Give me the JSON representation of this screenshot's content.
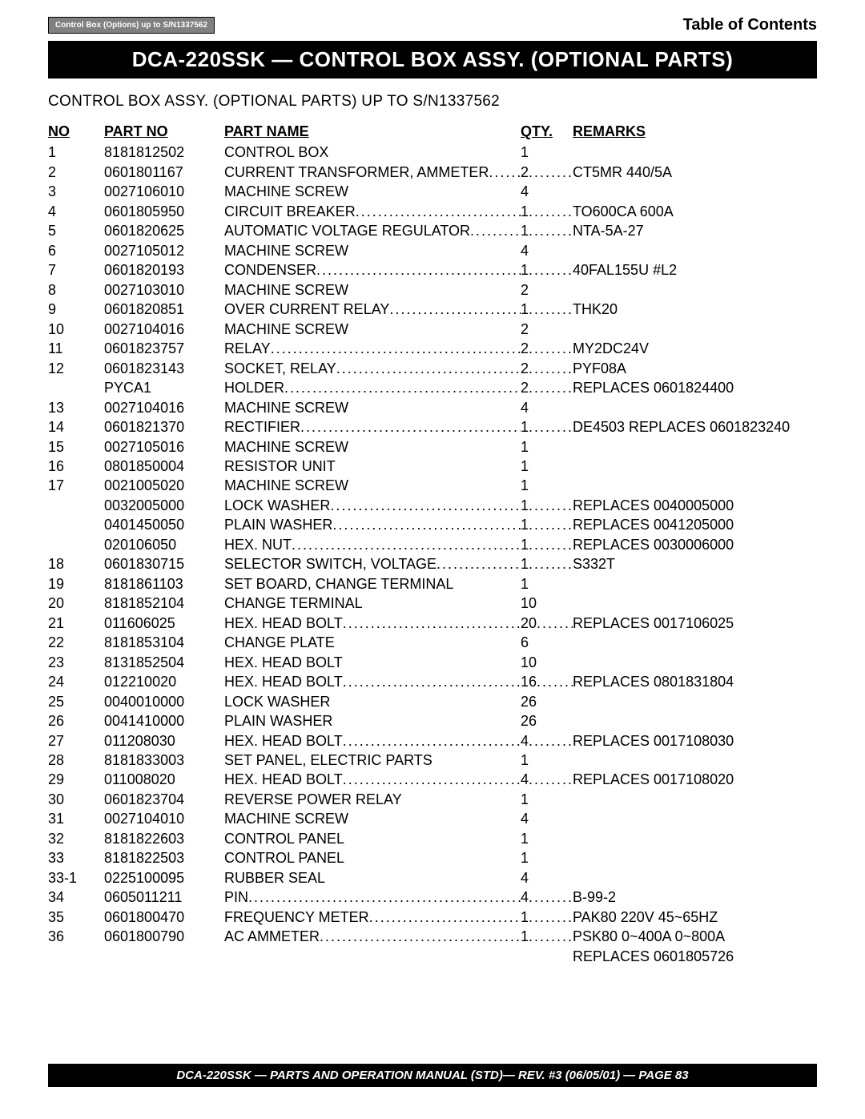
{
  "header": {
    "tag": "Control Box (Options) up to S/N1337562",
    "toc": "Table of Contents",
    "title": "DCA-220SSK — CONTROL BOX ASSY. (OPTIONAL PARTS)",
    "subtitle": "CONTROL BOX ASSY. (OPTIONAL PARTS) UP TO S/N1337562"
  },
  "columns": {
    "no": "NO",
    "partno": "PART NO",
    "partname": "PART NAME",
    "qty": "QTY.",
    "remarks": "REMARKS"
  },
  "rows": [
    {
      "no": "1",
      "pn": "8181812502",
      "name": "CONTROL BOX",
      "qty": "1",
      "rem": "",
      "dots": false
    },
    {
      "no": "2",
      "pn": "0601801167",
      "name": "CURRENT TRANSFORMER, AMMETER",
      "qty": "2",
      "rem": "CT5MR 440/5A",
      "dots": true
    },
    {
      "no": "3",
      "pn": "0027106010",
      "name": "MACHINE SCREW",
      "qty": "4",
      "rem": "",
      "dots": false
    },
    {
      "no": "4",
      "pn": "0601805950",
      "name": "CIRCUIT BREAKER",
      "qty": "1",
      "rem": "TO600CA 600A",
      "dots": true
    },
    {
      "no": "5",
      "pn": "0601820625",
      "name": "AUTOMATIC VOLTAGE REGULATOR",
      "qty": "1",
      "rem": "NTA-5A-27",
      "dots": true
    },
    {
      "no": "6",
      "pn": "0027105012",
      "name": "MACHINE SCREW",
      "qty": "4",
      "rem": "",
      "dots": false
    },
    {
      "no": "7",
      "pn": "0601820193",
      "name": "CONDENSER",
      "qty": "1",
      "rem": "40FAL155U #L2",
      "dots": true
    },
    {
      "no": "8",
      "pn": "0027103010",
      "name": "MACHINE SCREW",
      "qty": "2",
      "rem": "",
      "dots": false
    },
    {
      "no": "9",
      "pn": "0601820851",
      "name": "OVER CURRENT RELAY",
      "qty": "1",
      "rem": "THK20",
      "dots": true
    },
    {
      "no": "10",
      "pn": "0027104016",
      "name": "MACHINE SCREW",
      "qty": "2",
      "rem": "",
      "dots": false
    },
    {
      "no": "11",
      "pn": "0601823757",
      "name": "RELAY",
      "qty": "2",
      "rem": "MY2DC24V",
      "dots": true
    },
    {
      "no": "12",
      "pn": "0601823143",
      "name": "SOCKET, RELAY",
      "qty": "2",
      "rem": "PYF08A",
      "dots": true
    },
    {
      "no": "",
      "pn": "PYCA1",
      "name": "HOLDER",
      "qty": "2",
      "rem": "REPLACES 0601824400",
      "dots": true
    },
    {
      "no": "13",
      "pn": "0027104016",
      "name": "MACHINE SCREW",
      "qty": "4",
      "rem": "",
      "dots": false
    },
    {
      "no": "14",
      "pn": "0601821370",
      "name": "RECTIFIER",
      "qty": "1",
      "rem": "DE4503 REPLACES 0601823240",
      "dots": true
    },
    {
      "no": "15",
      "pn": "0027105016",
      "name": "MACHINE SCREW",
      "qty": "1",
      "rem": "",
      "dots": false
    },
    {
      "no": "16",
      "pn": "0801850004",
      "name": "RESISTOR UNIT",
      "qty": "1",
      "rem": "",
      "dots": false
    },
    {
      "no": "17",
      "pn": "0021005020",
      "name": "MACHINE SCREW",
      "qty": "1",
      "rem": "",
      "dots": false
    },
    {
      "no": "",
      "pn": "0032005000",
      "name": "LOCK WASHER",
      "qty": "1",
      "rem": "REPLACES 0040005000",
      "dots": true
    },
    {
      "no": "",
      "pn": "0401450050",
      "name": "PLAIN WASHER",
      "qty": "1",
      "rem": "REPLACES 0041205000",
      "dots": true
    },
    {
      "no": "",
      "pn": "020106050",
      "name": "HEX. NUT",
      "qty": "1",
      "rem": "REPLACES 0030006000",
      "dots": true
    },
    {
      "no": "18",
      "pn": "0601830715",
      "name": "SELECTOR SWITCH, VOLTAGE",
      "qty": "1",
      "rem": "S332T",
      "dots": true
    },
    {
      "no": "19",
      "pn": "8181861103",
      "name": "SET BOARD, CHANGE TERMINAL",
      "qty": "1",
      "rem": "",
      "dots": false
    },
    {
      "no": "20",
      "pn": "8181852104",
      "name": "CHANGE TERMINAL",
      "qty": "10",
      "rem": "",
      "dots": false
    },
    {
      "no": "21",
      "pn": "011606025",
      "name": "HEX. HEAD BOLT",
      "qty": "20",
      "rem": "REPLACES 0017106025",
      "dots": true
    },
    {
      "no": "22",
      "pn": "8181853104",
      "name": "CHANGE PLATE",
      "qty": "6",
      "rem": "",
      "dots": false
    },
    {
      "no": "23",
      "pn": "8131852504",
      "name": "HEX. HEAD BOLT",
      "qty": "10",
      "rem": "",
      "dots": false
    },
    {
      "no": "24",
      "pn": "012210020",
      "name": "HEX. HEAD BOLT",
      "qty": "16",
      "rem": "REPLACES 0801831804",
      "dots": true
    },
    {
      "no": "25",
      "pn": "0040010000",
      "name": "LOCK WASHER",
      "qty": "26",
      "rem": "",
      "dots": false
    },
    {
      "no": "26",
      "pn": "0041410000",
      "name": "PLAIN WASHER",
      "qty": "26",
      "rem": "",
      "dots": false
    },
    {
      "no": "27",
      "pn": "011208030",
      "name": "HEX. HEAD BOLT",
      "qty": "4",
      "rem": "REPLACES 0017108030",
      "dots": true
    },
    {
      "no": "28",
      "pn": "8181833003",
      "name": "SET PANEL, ELECTRIC PARTS",
      "qty": "1",
      "rem": "",
      "dots": false
    },
    {
      "no": "29",
      "pn": "011008020",
      "name": "HEX. HEAD BOLT",
      "qty": "4",
      "rem": "REPLACES 0017108020",
      "dots": true
    },
    {
      "no": "30",
      "pn": "0601823704",
      "name": "REVERSE POWER RELAY",
      "qty": "1",
      "rem": "",
      "dots": false
    },
    {
      "no": "31",
      "pn": "0027104010",
      "name": "MACHINE SCREW",
      "qty": "4",
      "rem": "",
      "dots": false
    },
    {
      "no": "32",
      "pn": "8181822603",
      "name": "CONTROL PANEL",
      "qty": "1",
      "rem": "",
      "dots": false
    },
    {
      "no": "33",
      "pn": "8181822503",
      "name": "CONTROL PANEL",
      "qty": "1",
      "rem": "",
      "dots": false
    },
    {
      "no": "33-1",
      "pn": "0225100095",
      "name": "RUBBER SEAL",
      "qty": "4",
      "rem": "",
      "dots": false
    },
    {
      "no": "34",
      "pn": "0605011211",
      "name": "PIN",
      "qty": "4",
      "rem": "B-99-2",
      "dots": true
    },
    {
      "no": "35",
      "pn": "0601800470",
      "name": "FREQUENCY METER",
      "qty": "1",
      "rem": "PAK80 220V 45~65HZ",
      "dots": true
    },
    {
      "no": "36",
      "pn": "0601800790",
      "name": "AC AMMETER",
      "qty": "1",
      "rem": "PSK80 0~400A 0~800A",
      "dots": true
    },
    {
      "no": "",
      "pn": "",
      "name": "",
      "qty": "",
      "rem": "REPLACES 0601805726",
      "dots": false
    }
  ],
  "footer": "DCA-220SSK — PARTS AND OPERATION  MANUAL (STD)— REV. #3  (06/05/01) — PAGE 83"
}
